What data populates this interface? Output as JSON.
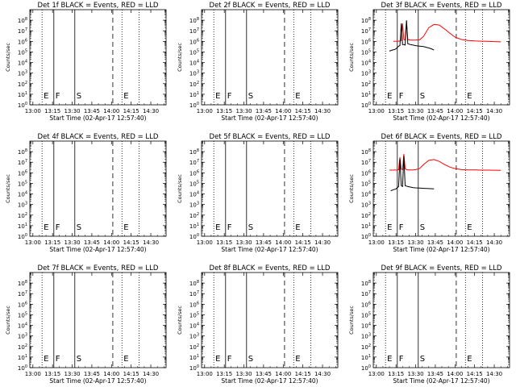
{
  "chart_data": {
    "type": "line",
    "panels": [
      {
        "title": "Det 1f BLACK = Events, RED = LLD",
        "has_data": false
      },
      {
        "title": "Det 2f BLACK = Events, RED = LLD",
        "has_data": false
      },
      {
        "title": "Det 3f BLACK = Events, RED = LLD",
        "has_data": true,
        "series": [
          {
            "color": "#ff0000",
            "x": [
              "13:13",
              "13:17",
              "13:18",
              "13:19",
              "13:20",
              "13:21",
              "13:22",
              "13:23",
              "13:24",
              "13:25",
              "13:26",
              "13:28",
              "13:30",
              "13:33",
              "13:36",
              "13:40",
              "13:44",
              "13:48",
              "13:52",
              "13:56",
              "14:00",
              "14:05",
              "14:10",
              "14:15",
              "14:20",
              "14:25",
              "14:30",
              "14:35"
            ],
            "y": [
              1000000.0,
              1050000.0,
              1100000.0,
              1200000.0,
              50000000.0,
              1500000.0,
              1300000.0,
              80000000.0,
              1500000.0,
              1400000.0,
              1300000.0,
              1300000.0,
              1300000.0,
              1400000.0,
              3000000.0,
              20000000.0,
              40000000.0,
              35000000.0,
              15000000.0,
              6000000.0,
              2500000.0,
              1500000.0,
              1200000.0,
              1100000.0,
              1050000.0,
              1000000.0,
              950000.0,
              900000.0
            ]
          },
          {
            "color": "#000000",
            "x": [
              "13:10",
              "13:12",
              "13:14",
              "13:15",
              "13:17",
              "13:18",
              "13:19",
              "13:20",
              "13:21",
              "13:22",
              "13:23",
              "13:24",
              "13:26",
              "13:28",
              "13:30",
              "13:33",
              "13:36",
              "13:38",
              "13:40",
              "13:42",
              "13:44"
            ],
            "y": [
              120000.0,
              150000.0,
              170000.0,
              200000.0,
              350000.0,
              400000.0,
              50000000.0,
              500000.0,
              500000.0,
              450000.0,
              100000000.0,
              600000.0,
              500000.0,
              450000.0,
              400000.0,
              360000.0,
              320000.0,
              280000.0,
              240000.0,
              200000.0,
              150000.0
            ]
          }
        ]
      },
      {
        "title": "Det 4f BLACK = Events, RED = LLD",
        "has_data": false
      },
      {
        "title": "Det 5f BLACK = Events, RED = LLD",
        "has_data": false
      },
      {
        "title": "Det 6f BLACK = Events, RED = LLD",
        "has_data": true,
        "series": [
          {
            "color": "#ff0000",
            "x": [
              "13:10",
              "13:13",
              "13:16",
              "13:17",
              "13:18",
              "13:19",
              "13:20",
              "13:21",
              "13:22",
              "13:23",
              "13:24",
              "13:26",
              "13:28",
              "13:30",
              "13:33",
              "13:36",
              "13:40",
              "13:44",
              "13:48",
              "13:52",
              "13:56",
              "14:00",
              "14:05",
              "14:10",
              "14:15",
              "14:20",
              "14:25",
              "14:30",
              "14:35"
            ],
            "y": [
              1800000.0,
              1800000.0,
              1900000.0,
              2000000.0,
              30000000.0,
              2200000.0,
              2000000.0,
              60000000.0,
              2500000.0,
              2000000.0,
              1900000.0,
              1900000.0,
              1900000.0,
              2000000.0,
              2500000.0,
              6000000.0,
              15000000.0,
              18000000.0,
              12000000.0,
              6000000.0,
              3500000.0,
              2500000.0,
              2000000.0,
              1900000.0,
              1850000.0,
              1800000.0,
              1800000.0,
              1750000.0,
              1700000.0
            ]
          },
          {
            "color": "#000000",
            "x": [
              "13:11",
              "13:13",
              "13:15",
              "13:17",
              "13:18",
              "13:19",
              "13:20",
              "13:21",
              "13:22",
              "13:23",
              "13:24",
              "13:26",
              "13:28",
              "13:30",
              "13:33",
              "13:36",
              "13:40",
              "13:44"
            ],
            "y": [
              20000.0,
              25000.0,
              30000.0,
              50000.0,
              20000000.0,
              60000.0,
              50000.0,
              40000000.0,
              60000.0,
              55000.0,
              50000.0,
              45000.0,
              40000.0,
              38000.0,
              36000.0,
              34000.0,
              32000.0,
              30000.0
            ]
          }
        ]
      },
      {
        "title": "Det 7f BLACK = Events, RED = LLD",
        "has_data": false
      },
      {
        "title": "Det 8f BLACK = Events, RED = LLD",
        "has_data": false
      },
      {
        "title": "Det 9f BLACK = Events, RED = LLD",
        "has_data": false
      }
    ],
    "xlabel": "Start Time (02-Apr-17 12:57:40)",
    "ylabel": "Counts/sec",
    "y_scale": "log",
    "ylim": [
      1,
      1000000000.0
    ],
    "xlim": [
      "12:57:40",
      "14:41:40"
    ],
    "x_tick_labels": [
      "13:00",
      "13:15",
      "13:30",
      "13:45",
      "14:00",
      "14:15",
      "14:30"
    ],
    "y_tick_labels": [
      {
        "base": "10",
        "exp": "0"
      },
      {
        "base": "10",
        "exp": "1"
      },
      {
        "base": "10",
        "exp": "2"
      },
      {
        "base": "10",
        "exp": "3"
      },
      {
        "base": "10",
        "exp": "4"
      },
      {
        "base": "10",
        "exp": "5"
      },
      {
        "base": "10",
        "exp": "6"
      },
      {
        "base": "10",
        "exp": "7"
      },
      {
        "base": "10",
        "exp": "8"
      }
    ],
    "markers": [
      {
        "time": "13:07",
        "style": "dotted",
        "label": "E"
      },
      {
        "time": "13:16",
        "style": "solid",
        "label": "F"
      },
      {
        "time": "13:32",
        "style": "solid",
        "label": "S"
      },
      {
        "time": "14:01",
        "style": "dashed",
        "label": ""
      },
      {
        "time": "14:08",
        "style": "dotted",
        "label": "E"
      },
      {
        "time": "14:21",
        "style": "dotted",
        "label": ""
      }
    ],
    "colors": {
      "events": "#000000",
      "lld": "#ff0000"
    }
  }
}
